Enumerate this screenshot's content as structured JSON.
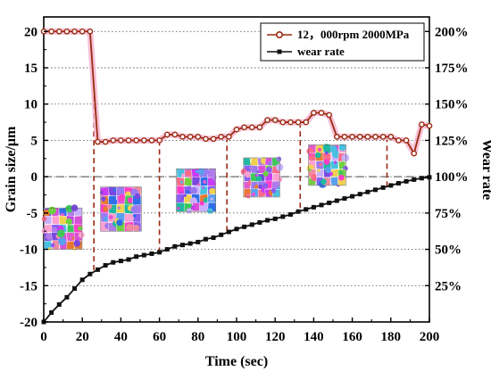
{
  "chart_data": {
    "type": "line",
    "xlabel": "Time (sec)",
    "ylabel_left": "Grain size/μm",
    "ylabel_right": "Wear rate",
    "x_ticks": [
      0,
      20,
      40,
      60,
      80,
      100,
      120,
      140,
      160,
      180,
      200
    ],
    "y_left_ticks": [
      -20,
      -15,
      -10,
      -5,
      0,
      5,
      10,
      15,
      20
    ],
    "y_right_ticks": [
      "25%",
      "50%",
      "75%",
      "100%",
      "125%",
      "150%",
      "175%",
      "200%"
    ],
    "xlim": [
      0,
      200
    ],
    "ylim_left": [
      -20,
      22
    ],
    "ylim_right": [
      "0%",
      "210%"
    ],
    "reference_line_y": 0,
    "series": [
      {
        "name": "12，000rpm 2000MPa",
        "axis": "left",
        "color": "#9b2a12",
        "marker": "circle",
        "x": [
          0,
          4,
          8,
          12,
          16,
          20,
          24,
          28,
          32,
          36,
          40,
          44,
          48,
          52,
          56,
          60,
          64,
          68,
          72,
          76,
          80,
          84,
          88,
          92,
          96,
          100,
          104,
          108,
          112,
          116,
          120,
          124,
          128,
          132,
          136,
          140,
          144,
          148,
          152,
          156,
          160,
          164,
          168,
          172,
          176,
          180,
          184,
          188,
          192,
          196,
          200
        ],
        "y": [
          20,
          20,
          20,
          20,
          20,
          20,
          20,
          4.8,
          4.8,
          5.0,
          5.0,
          5.0,
          5.0,
          5.0,
          5.0,
          5.0,
          5.8,
          5.8,
          5.5,
          5.5,
          5.5,
          5.2,
          5.2,
          5.5,
          5.5,
          6.5,
          6.8,
          6.8,
          6.8,
          7.8,
          7.8,
          7.5,
          7.5,
          7.5,
          7.5,
          8.8,
          8.8,
          8.5,
          5.5,
          5.5,
          5.5,
          5.5,
          5.5,
          5.5,
          5.5,
          5.5,
          5.0,
          5.0,
          3.2,
          7.2,
          7.0
        ]
      },
      {
        "name": "wear rate",
        "axis": "right",
        "color": "#111111",
        "marker": "square",
        "x": [
          0,
          4,
          8,
          12,
          16,
          20,
          24,
          28,
          32,
          36,
          40,
          44,
          48,
          52,
          56,
          60,
          64,
          68,
          72,
          76,
          80,
          84,
          88,
          92,
          96,
          100,
          104,
          108,
          112,
          116,
          120,
          124,
          128,
          132,
          136,
          140,
          144,
          148,
          152,
          156,
          160,
          164,
          168,
          172,
          176,
          180,
          184,
          188,
          192,
          196,
          200
        ],
        "y": [
          0,
          6.5,
          12,
          17,
          23,
          29,
          33,
          36,
          39,
          41,
          42,
          43,
          45,
          46,
          47,
          48,
          50,
          52,
          53,
          54,
          55,
          57,
          58,
          60,
          62,
          64,
          65.5,
          67,
          68.5,
          70,
          71,
          72.5,
          74,
          76,
          77.5,
          79,
          80.5,
          82,
          83.5,
          85,
          86.5,
          88,
          89.5,
          91,
          92.5,
          94,
          95.5,
          96.8,
          98,
          99,
          99.6
        ]
      }
    ]
  },
  "micrographs": [
    {
      "name": "micrograph-1",
      "seed": 11
    },
    {
      "name": "micrograph-2",
      "seed": 23
    },
    {
      "name": "micrograph-3",
      "seed": 37
    },
    {
      "name": "micrograph-4",
      "seed": 51
    },
    {
      "name": "micrograph-5",
      "seed": 73
    }
  ]
}
